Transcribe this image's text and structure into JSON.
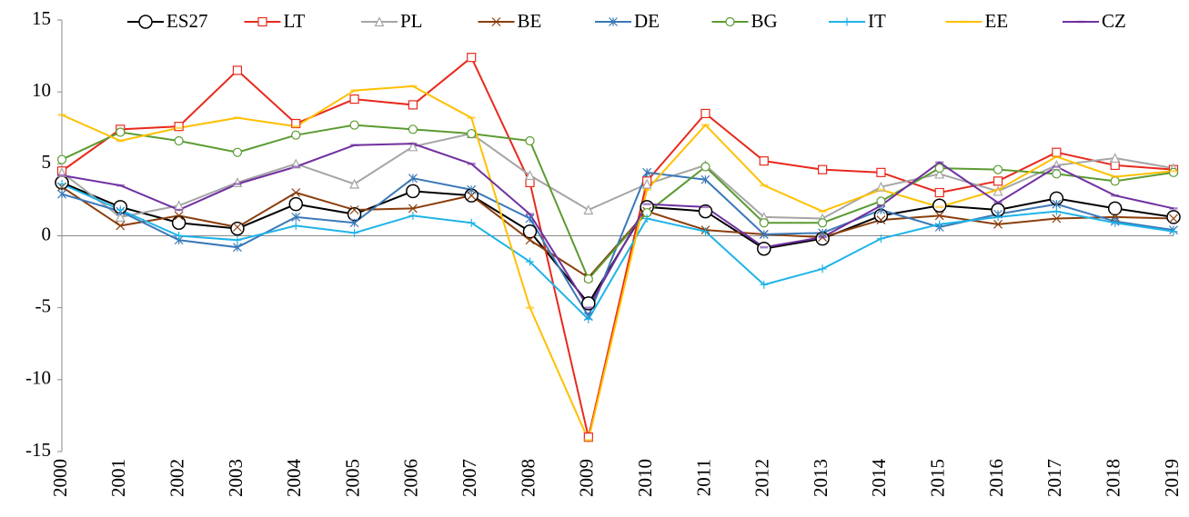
{
  "chart_data": {
    "type": "line",
    "categories": [
      "2000",
      "2001",
      "2002",
      "2003",
      "2004",
      "2005",
      "2006",
      "2007",
      "2008",
      "2009",
      "2010",
      "2011",
      "2012",
      "2013",
      "2014",
      "2015",
      "2016",
      "2017",
      "2018",
      "2019"
    ],
    "ylim": [
      -15,
      15
    ],
    "yticks": [
      15,
      10,
      5,
      0,
      -5,
      -10,
      -15
    ],
    "legend": "top",
    "series": [
      {
        "name": "ES27",
        "color": "#000000",
        "marker": "circle-large",
        "values": [
          3.7,
          2.0,
          0.9,
          0.5,
          2.2,
          1.5,
          3.1,
          2.8,
          0.3,
          -4.7,
          2.0,
          1.7,
          -0.9,
          -0.2,
          1.4,
          2.1,
          1.8,
          2.6,
          1.9,
          1.3
        ]
      },
      {
        "name": "LT",
        "color": "#e8291c",
        "marker": "square",
        "values": [
          4.5,
          7.4,
          7.6,
          11.5,
          7.8,
          9.5,
          9.1,
          12.4,
          3.7,
          -14.0,
          3.8,
          8.5,
          5.2,
          4.6,
          4.4,
          3.0,
          3.8,
          5.8,
          4.9,
          4.6
        ]
      },
      {
        "name": "PL",
        "color": "#a5a5a5",
        "marker": "triangle",
        "values": [
          4.4,
          1.3,
          2.1,
          3.7,
          5.0,
          3.6,
          6.2,
          7.1,
          4.2,
          1.8,
          3.6,
          4.9,
          1.3,
          1.2,
          3.4,
          4.3,
          3.1,
          4.9,
          5.4,
          4.7
        ]
      },
      {
        "name": "BE",
        "color": "#8b3e0c",
        "marker": "x",
        "values": [
          3.4,
          0.7,
          1.4,
          0.6,
          3.0,
          1.8,
          1.9,
          2.8,
          -0.3,
          -2.9,
          1.7,
          0.4,
          0.1,
          -0.1,
          1.1,
          1.4,
          0.8,
          1.2,
          1.3,
          1.2
        ]
      },
      {
        "name": "DE",
        "color": "#3a78b8",
        "marker": "star",
        "values": [
          2.9,
          1.7,
          -0.3,
          -0.8,
          1.3,
          0.9,
          4.0,
          3.2,
          1.2,
          -5.6,
          4.4,
          3.9,
          0.1,
          0.2,
          1.8,
          0.6,
          1.5,
          2.2,
          1.0,
          0.4
        ]
      },
      {
        "name": "BG",
        "color": "#5b9b32",
        "marker": "circle",
        "values": [
          5.3,
          7.2,
          6.6,
          5.8,
          7.0,
          7.7,
          7.4,
          7.1,
          6.6,
          -3.0,
          1.6,
          4.8,
          0.9,
          0.9,
          2.4,
          4.7,
          4.6,
          4.3,
          3.8,
          4.4
        ]
      },
      {
        "name": "IT",
        "color": "#1eb4e8",
        "marker": "plus",
        "values": [
          3.6,
          1.8,
          0.0,
          -0.3,
          0.7,
          0.2,
          1.4,
          0.9,
          -1.8,
          -5.8,
          1.2,
          0.3,
          -3.4,
          -2.3,
          -0.2,
          0.8,
          1.3,
          1.7,
          0.9,
          0.3
        ]
      },
      {
        "name": "EE",
        "color": "#ffc000",
        "marker": "dash",
        "values": [
          8.4,
          6.6,
          7.5,
          8.2,
          7.6,
          10.1,
          10.4,
          8.2,
          -5.0,
          -14.2,
          3.2,
          7.7,
          3.5,
          1.7,
          3.2,
          2.0,
          3.2,
          5.5,
          4.1,
          4.5
        ]
      },
      {
        "name": "CZ",
        "color": "#7030a0",
        "marker": "dash",
        "values": [
          4.2,
          3.5,
          1.8,
          3.6,
          4.8,
          6.3,
          6.4,
          5.0,
          1.5,
          -5.0,
          2.2,
          2.0,
          -0.8,
          -0.1,
          2.1,
          5.1,
          2.3,
          4.8,
          2.8,
          1.9
        ]
      }
    ]
  }
}
